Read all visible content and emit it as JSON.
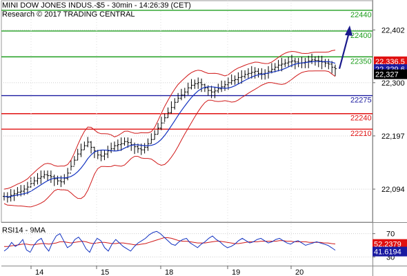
{
  "header": {
    "title": "MINI DOW JONES INDUS.-$5 - 30min - 14:26:39 (CET)",
    "research": "Research © 2017 TRADING CENTRAL"
  },
  "colors": {
    "green": "#1e9e1e",
    "blue": "#1a1aa0",
    "red": "#e01010",
    "bollinger": "#d01818",
    "ma": "#1030c0",
    "price": "#000000",
    "arrow": "#1a1a8c"
  },
  "chart_data": [
    {
      "type": "line",
      "name": "price",
      "yaxis_ticks": [
        "22,402",
        "22,300",
        "22,197",
        "22,094"
      ],
      "ylim": [
        22030,
        22460
      ],
      "xaxis_ticks": [
        "14",
        "15",
        "18",
        "19",
        "20"
      ],
      "levels": [
        {
          "value": 22440,
          "label": "22440",
          "color": "green"
        },
        {
          "value": 22400,
          "label": "22400",
          "color": "green"
        },
        {
          "value": 22350,
          "label": "22350",
          "color": "green"
        },
        {
          "value": 22275,
          "label": "22275",
          "color": "blue"
        },
        {
          "value": 22240,
          "label": "22240",
          "color": "red"
        },
        {
          "value": 22210,
          "label": "22210",
          "color": "red"
        }
      ],
      "badges": [
        {
          "value": 22336,
          "label": "22,336.5",
          "color": "#e01010"
        },
        {
          "value": 22329,
          "label": "22,329.6",
          "color": "#1a1aa0"
        },
        {
          "value": 22327,
          "label": "22,327",
          "color": "#000000"
        }
      ],
      "close": [
        22080,
        22078,
        22082,
        22085,
        22088,
        22090,
        22094,
        22098,
        22105,
        22110,
        22115,
        22118,
        22122,
        22120,
        22118,
        22114,
        22110,
        22108,
        22115,
        22125,
        22138,
        22150,
        22162,
        22170,
        22178,
        22185,
        22175,
        22168,
        22160,
        22158,
        22162,
        22168,
        22172,
        22178,
        22180,
        22182,
        22186,
        22184,
        22180,
        22176,
        22172,
        22170,
        22175,
        22182,
        22190,
        22200,
        22212,
        22222,
        22232,
        22242,
        22252,
        22262,
        22270,
        22276,
        22282,
        22290,
        22295,
        22298,
        22300,
        22296,
        22290,
        22285,
        22282,
        22284,
        22288,
        22292,
        22296,
        22300,
        22304,
        22306,
        22310,
        22312,
        22316,
        22318,
        22320,
        22322,
        22318,
        22316,
        22318,
        22322,
        22326,
        22330,
        22334,
        22336,
        22338,
        22340,
        22342,
        22340,
        22338,
        22338,
        22340,
        22342,
        22344,
        22343,
        22342,
        22340,
        22338,
        22336,
        22330,
        22327
      ],
      "indicators": [
        "Bollinger Bands",
        "Moving Average"
      ]
    },
    {
      "type": "line",
      "name": "RSI14 - 9MA",
      "title": "RSI14 - 9MA",
      "yaxis_ticks": [
        "70",
        "30"
      ],
      "ylim": [
        15,
        85
      ],
      "badges": [
        {
          "value": 52.2379,
          "label": "52.2379",
          "color": "#e01010"
        },
        {
          "value": 41.6194,
          "label": "41.6194",
          "color": "#1a1aa0"
        }
      ],
      "rsi": [
        40,
        45,
        55,
        48,
        52,
        60,
        42,
        38,
        50,
        58,
        62,
        48,
        40,
        55,
        66,
        70,
        58,
        46,
        50,
        60,
        64,
        56,
        44,
        38,
        52,
        62,
        58,
        46,
        40,
        52,
        60,
        54,
        48,
        44,
        40,
        48,
        54,
        58,
        62,
        68,
        72,
        74,
        70,
        64,
        58,
        52,
        50,
        56,
        60,
        62,
        54,
        50,
        46,
        52,
        56,
        62,
        66,
        60,
        56,
        50,
        46,
        48,
        52,
        58,
        62,
        58,
        54,
        56,
        60,
        62,
        58,
        54,
        56,
        60,
        62,
        58,
        54,
        52,
        56,
        58,
        54,
        50,
        52,
        54,
        56,
        54,
        52,
        50,
        46,
        41.6
      ],
      "ma": [
        48,
        48,
        49,
        50,
        51,
        52,
        52,
        51,
        51,
        52,
        53,
        53,
        52,
        53,
        54,
        56,
        56,
        55,
        54,
        55,
        56,
        57,
        56,
        54,
        53,
        54,
        55,
        55,
        54,
        53,
        53,
        54,
        54,
        53,
        52,
        51,
        51,
        52,
        53,
        55,
        57,
        59,
        61,
        63,
        63,
        62,
        60,
        58,
        57,
        57,
        56,
        55,
        54,
        54,
        54,
        55,
        56,
        57,
        57,
        56,
        55,
        54,
        53,
        53,
        54,
        55,
        56,
        56,
        56,
        57,
        57,
        57,
        57,
        57,
        58,
        58,
        57,
        57,
        56,
        56,
        56,
        56,
        55,
        55,
        55,
        55,
        54,
        54,
        53,
        52.2
      ]
    }
  ]
}
